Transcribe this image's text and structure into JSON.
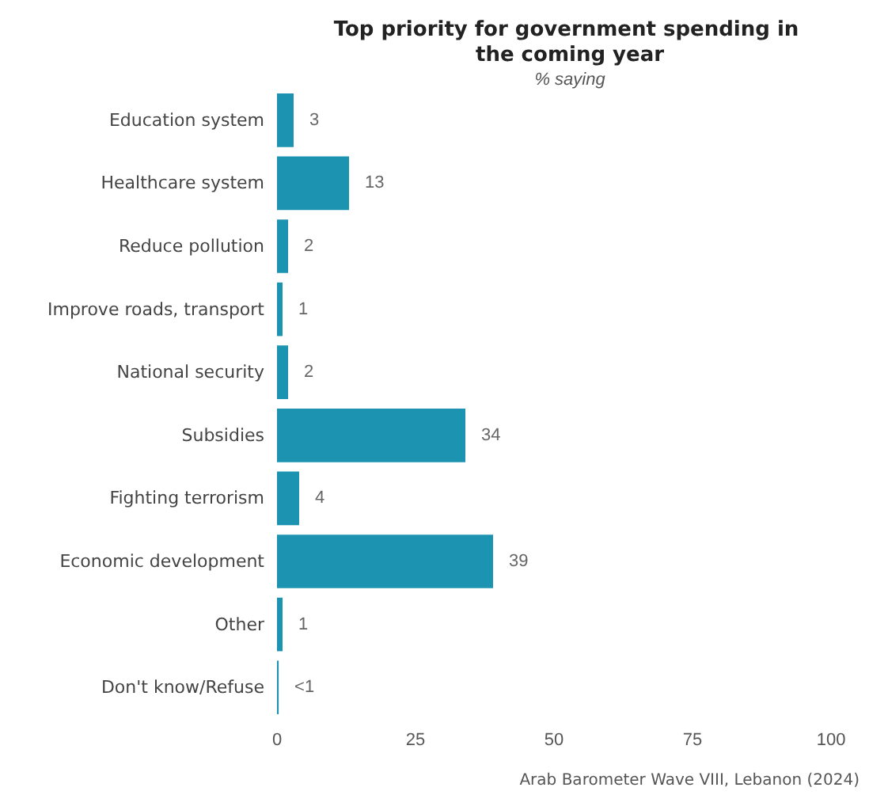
{
  "chart_data": {
    "type": "bar",
    "orientation": "horizontal",
    "title": "Top priority for government spending in the coming year",
    "subtitle": "% saying",
    "categories": [
      "Education system",
      "Healthcare system",
      "Reduce pollution",
      "Improve roads, transport",
      "National security",
      "Subsidies",
      "Fighting terrorism",
      "Economic development",
      "Other",
      "Don't know/Refuse"
    ],
    "values": [
      3,
      13,
      2,
      1,
      2,
      34,
      4,
      39,
      1,
      0.3
    ],
    "value_labels": [
      "3",
      "13",
      "2",
      "1",
      "2",
      "34",
      "4",
      "39",
      "1",
      "<1"
    ],
    "color": "#1b93b1",
    "xlim": [
      0,
      100
    ],
    "xticks": [
      0,
      25,
      50,
      75,
      100
    ],
    "grid": false,
    "annotations": [
      "Arab Barometer Wave VIII, Lebanon (2024)"
    ]
  }
}
